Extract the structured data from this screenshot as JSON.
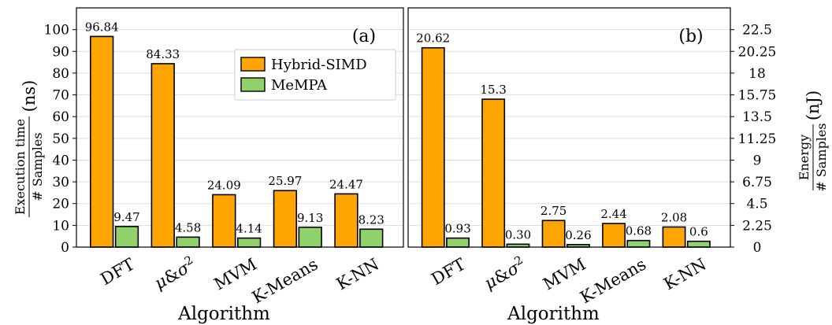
{
  "chart_data": [
    {
      "type": "bar",
      "panel_label": "(a)",
      "xlabel": "Algorithm",
      "ylabel_num": "Execution time",
      "ylabel_den": "# Samples",
      "ylabel_unit": "(ns)",
      "ylim": [
        0,
        110
      ],
      "yticks": [
        "0",
        "10",
        "20",
        "30",
        "40",
        "50",
        "60",
        "70",
        "80",
        "90",
        "100"
      ],
      "ytick_values": [
        0,
        10,
        20,
        30,
        40,
        50,
        60,
        70,
        80,
        90,
        100
      ],
      "y_axis_side": "left",
      "grid": true,
      "legend": "top-right",
      "categories": [
        "DFT",
        "μ&σ²",
        "MVM",
        "K-Means",
        "K-NN"
      ],
      "series": [
        {
          "name": "Hybrid-SIMD",
          "color": "#FFA500",
          "values": [
            96.84,
            84.33,
            24.09,
            25.97,
            24.47
          ],
          "labels": [
            "96.84",
            "84.33",
            "24.09",
            "25.97",
            "24.47"
          ]
        },
        {
          "name": "MeMPA",
          "color": "#8FD16A",
          "values": [
            9.47,
            4.58,
            4.14,
            9.13,
            8.23
          ],
          "labels": [
            "9.47",
            "4.58",
            "4.14",
            "9.13",
            "8.23"
          ]
        }
      ]
    },
    {
      "type": "bar",
      "panel_label": "(b)",
      "xlabel": "Algorithm",
      "ylabel_num": "Energy",
      "ylabel_den": "# Samples",
      "ylabel_unit": "(nJ)",
      "ylim": [
        0,
        24.75
      ],
      "yticks": [
        "0",
        "2.25",
        "4.5",
        "6.75",
        "9",
        "11.25",
        "13.5",
        "15.75",
        "18",
        "20.25",
        "22.5"
      ],
      "ytick_values": [
        0,
        2.25,
        4.5,
        6.75,
        9,
        11.25,
        13.5,
        15.75,
        18,
        20.25,
        22.5
      ],
      "y_axis_side": "right",
      "grid": true,
      "categories": [
        "DFT",
        "μ&σ²",
        "MVM",
        "K-Means",
        "K-NN"
      ],
      "series": [
        {
          "name": "Hybrid-SIMD",
          "color": "#FFA500",
          "values": [
            20.62,
            15.3,
            2.75,
            2.44,
            2.08
          ],
          "labels": [
            "20.62",
            "15.3",
            "2.75",
            "2.44",
            "2.08"
          ]
        },
        {
          "name": "MeMPA",
          "color": "#8FD16A",
          "values": [
            0.93,
            0.3,
            0.26,
            0.68,
            0.6
          ],
          "labels": [
            "0.93",
            "0.30",
            "0.26",
            "0.68",
            "0.6"
          ]
        }
      ]
    }
  ]
}
